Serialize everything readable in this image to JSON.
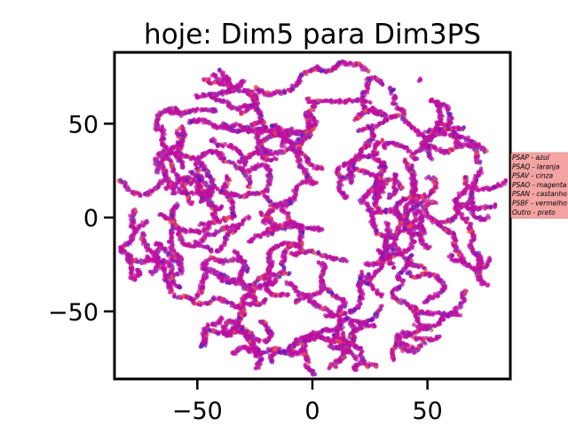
{
  "chart_data": {
    "type": "scatter",
    "title": "hoje: Dim5 para Dim3PS",
    "xlabel": "",
    "ylabel": "",
    "xlim": [
      -86,
      86
    ],
    "ylim": [
      -86,
      88
    ],
    "x_ticks": [
      -50,
      0,
      50
    ],
    "y_ticks": [
      50,
      0,
      -50
    ],
    "grid": false,
    "legend_placement": "right, outside the axes",
    "legend_color": "#f4a3a3",
    "legend_entries": [
      "PSAP - azul",
      "PSAQ - laranja",
      "PSAV - cinza",
      "PSAO - magenta",
      "PSAN - castanho",
      "PSBF - vermelho",
      "Outro - preto"
    ],
    "point_cloud": {
      "shape": "disc",
      "center": [
        0,
        2
      ],
      "radius": 86,
      "dominant_color": "#c0109f",
      "accent_colors": [
        "#4b1fc7",
        "#ef5a3c",
        "#8e44b5"
      ]
    }
  }
}
